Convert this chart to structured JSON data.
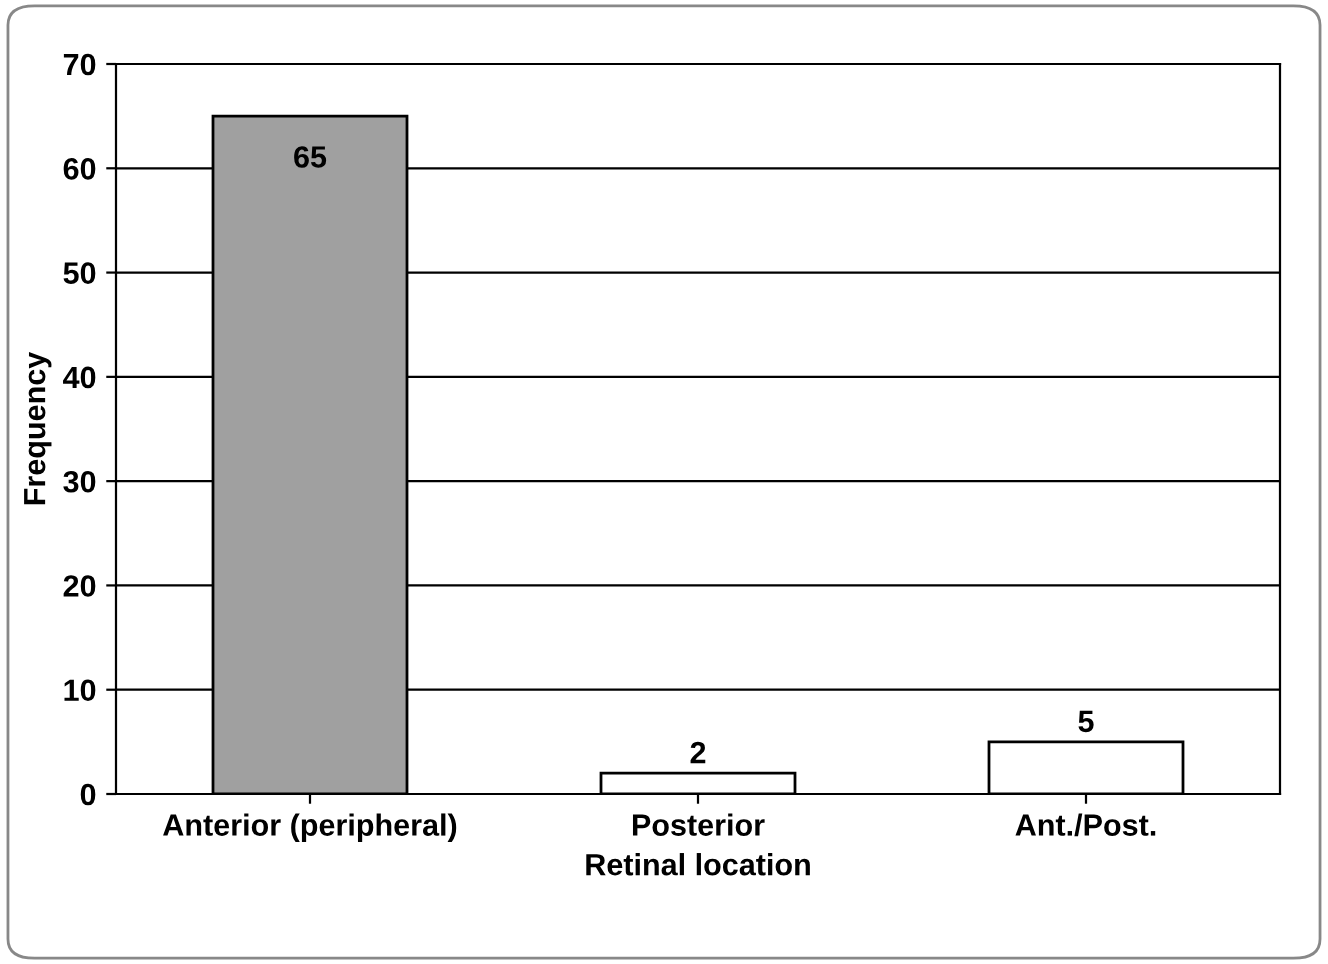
{
  "chart_data": {
    "type": "bar",
    "xlabel": "Retinal location",
    "ylabel": "Frequency",
    "categories": [
      "Anterior (peripheral)",
      "Posterior",
      "Ant./Post."
    ],
    "values": [
      65,
      2,
      5
    ],
    "colors": [
      "#a0a0a0",
      "#ffffff",
      "#ffffff"
    ],
    "ylim": [
      0,
      70
    ],
    "yticks": [
      0,
      10,
      20,
      30,
      40,
      50,
      60,
      70
    ],
    "grid": "y",
    "data_labels": true
  }
}
